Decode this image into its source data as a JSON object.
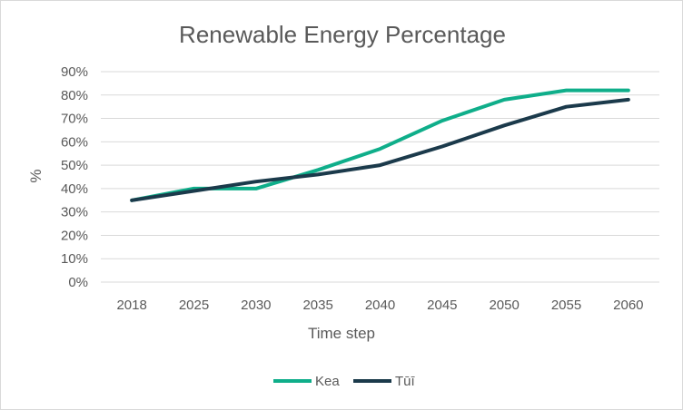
{
  "chart_data": {
    "type": "line",
    "title": "Renewable Energy Percentage",
    "xlabel": "Time step",
    "ylabel": "%",
    "categories": [
      "2018",
      "2025",
      "2030",
      "2035",
      "2040",
      "2045",
      "2050",
      "2055",
      "2060"
    ],
    "y_ticks": [
      "0%",
      "10%",
      "20%",
      "30%",
      "40%",
      "50%",
      "60%",
      "70%",
      "80%",
      "90%"
    ],
    "ylim": [
      0,
      90
    ],
    "grid": true,
    "legend_position": "bottom",
    "series": [
      {
        "name": "Kea",
        "color": "#0fae8a",
        "values": [
          35,
          40,
          40,
          48,
          57,
          69,
          78,
          82,
          82
        ]
      },
      {
        "name": "Tūī",
        "color": "#1b3a4b",
        "values": [
          35,
          39,
          43,
          46,
          50,
          58,
          67,
          75,
          78
        ]
      }
    ]
  }
}
